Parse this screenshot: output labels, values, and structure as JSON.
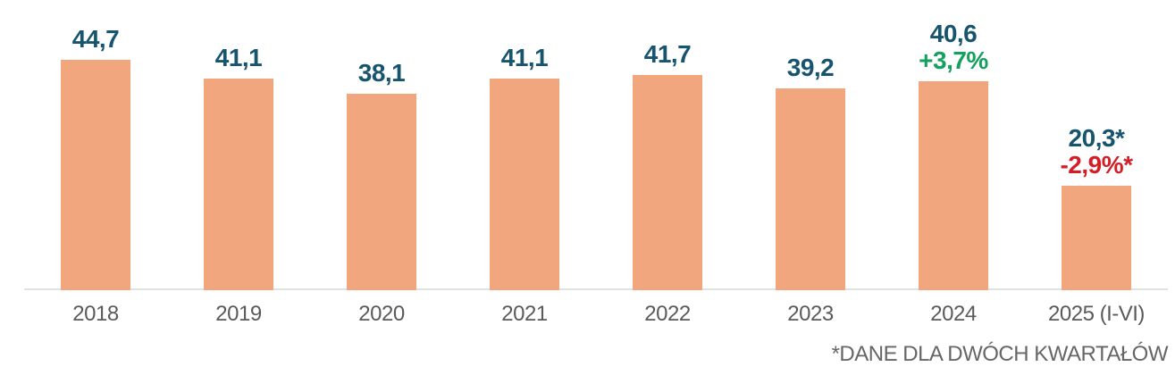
{
  "chart_data": {
    "type": "bar",
    "title": "",
    "xlabel": "",
    "ylabel": "",
    "ylim": [
      0,
      47
    ],
    "grid": false,
    "legend": null,
    "categories": [
      "2018",
      "2019",
      "2020",
      "2021",
      "2022",
      "2023",
      "2024",
      "2025 (I-VI)"
    ],
    "values": [
      44.7,
      41.1,
      38.1,
      41.1,
      41.7,
      39.2,
      40.6,
      20.3
    ],
    "value_labels": [
      "44,7",
      "41,1",
      "38,1",
      "41,1",
      "41,7",
      "39,2",
      "40,6",
      "20,3*"
    ],
    "annotations": [
      null,
      null,
      null,
      null,
      null,
      null,
      {
        "text": "+3,7%",
        "type": "positive"
      },
      {
        "text": "-2,9%*",
        "type": "negative"
      }
    ],
    "footnote": "*DANE DLA DWÓCH KWARTAŁÓW",
    "colors": {
      "bar": "#F1A67D",
      "value_label": "#17546E",
      "positive": "#14A05F",
      "negative": "#D41E26",
      "axis_label": "#5A5A5A",
      "axis_line": "#E2E2E2",
      "footnote": "#666666",
      "background": "#FFFFFF"
    }
  }
}
